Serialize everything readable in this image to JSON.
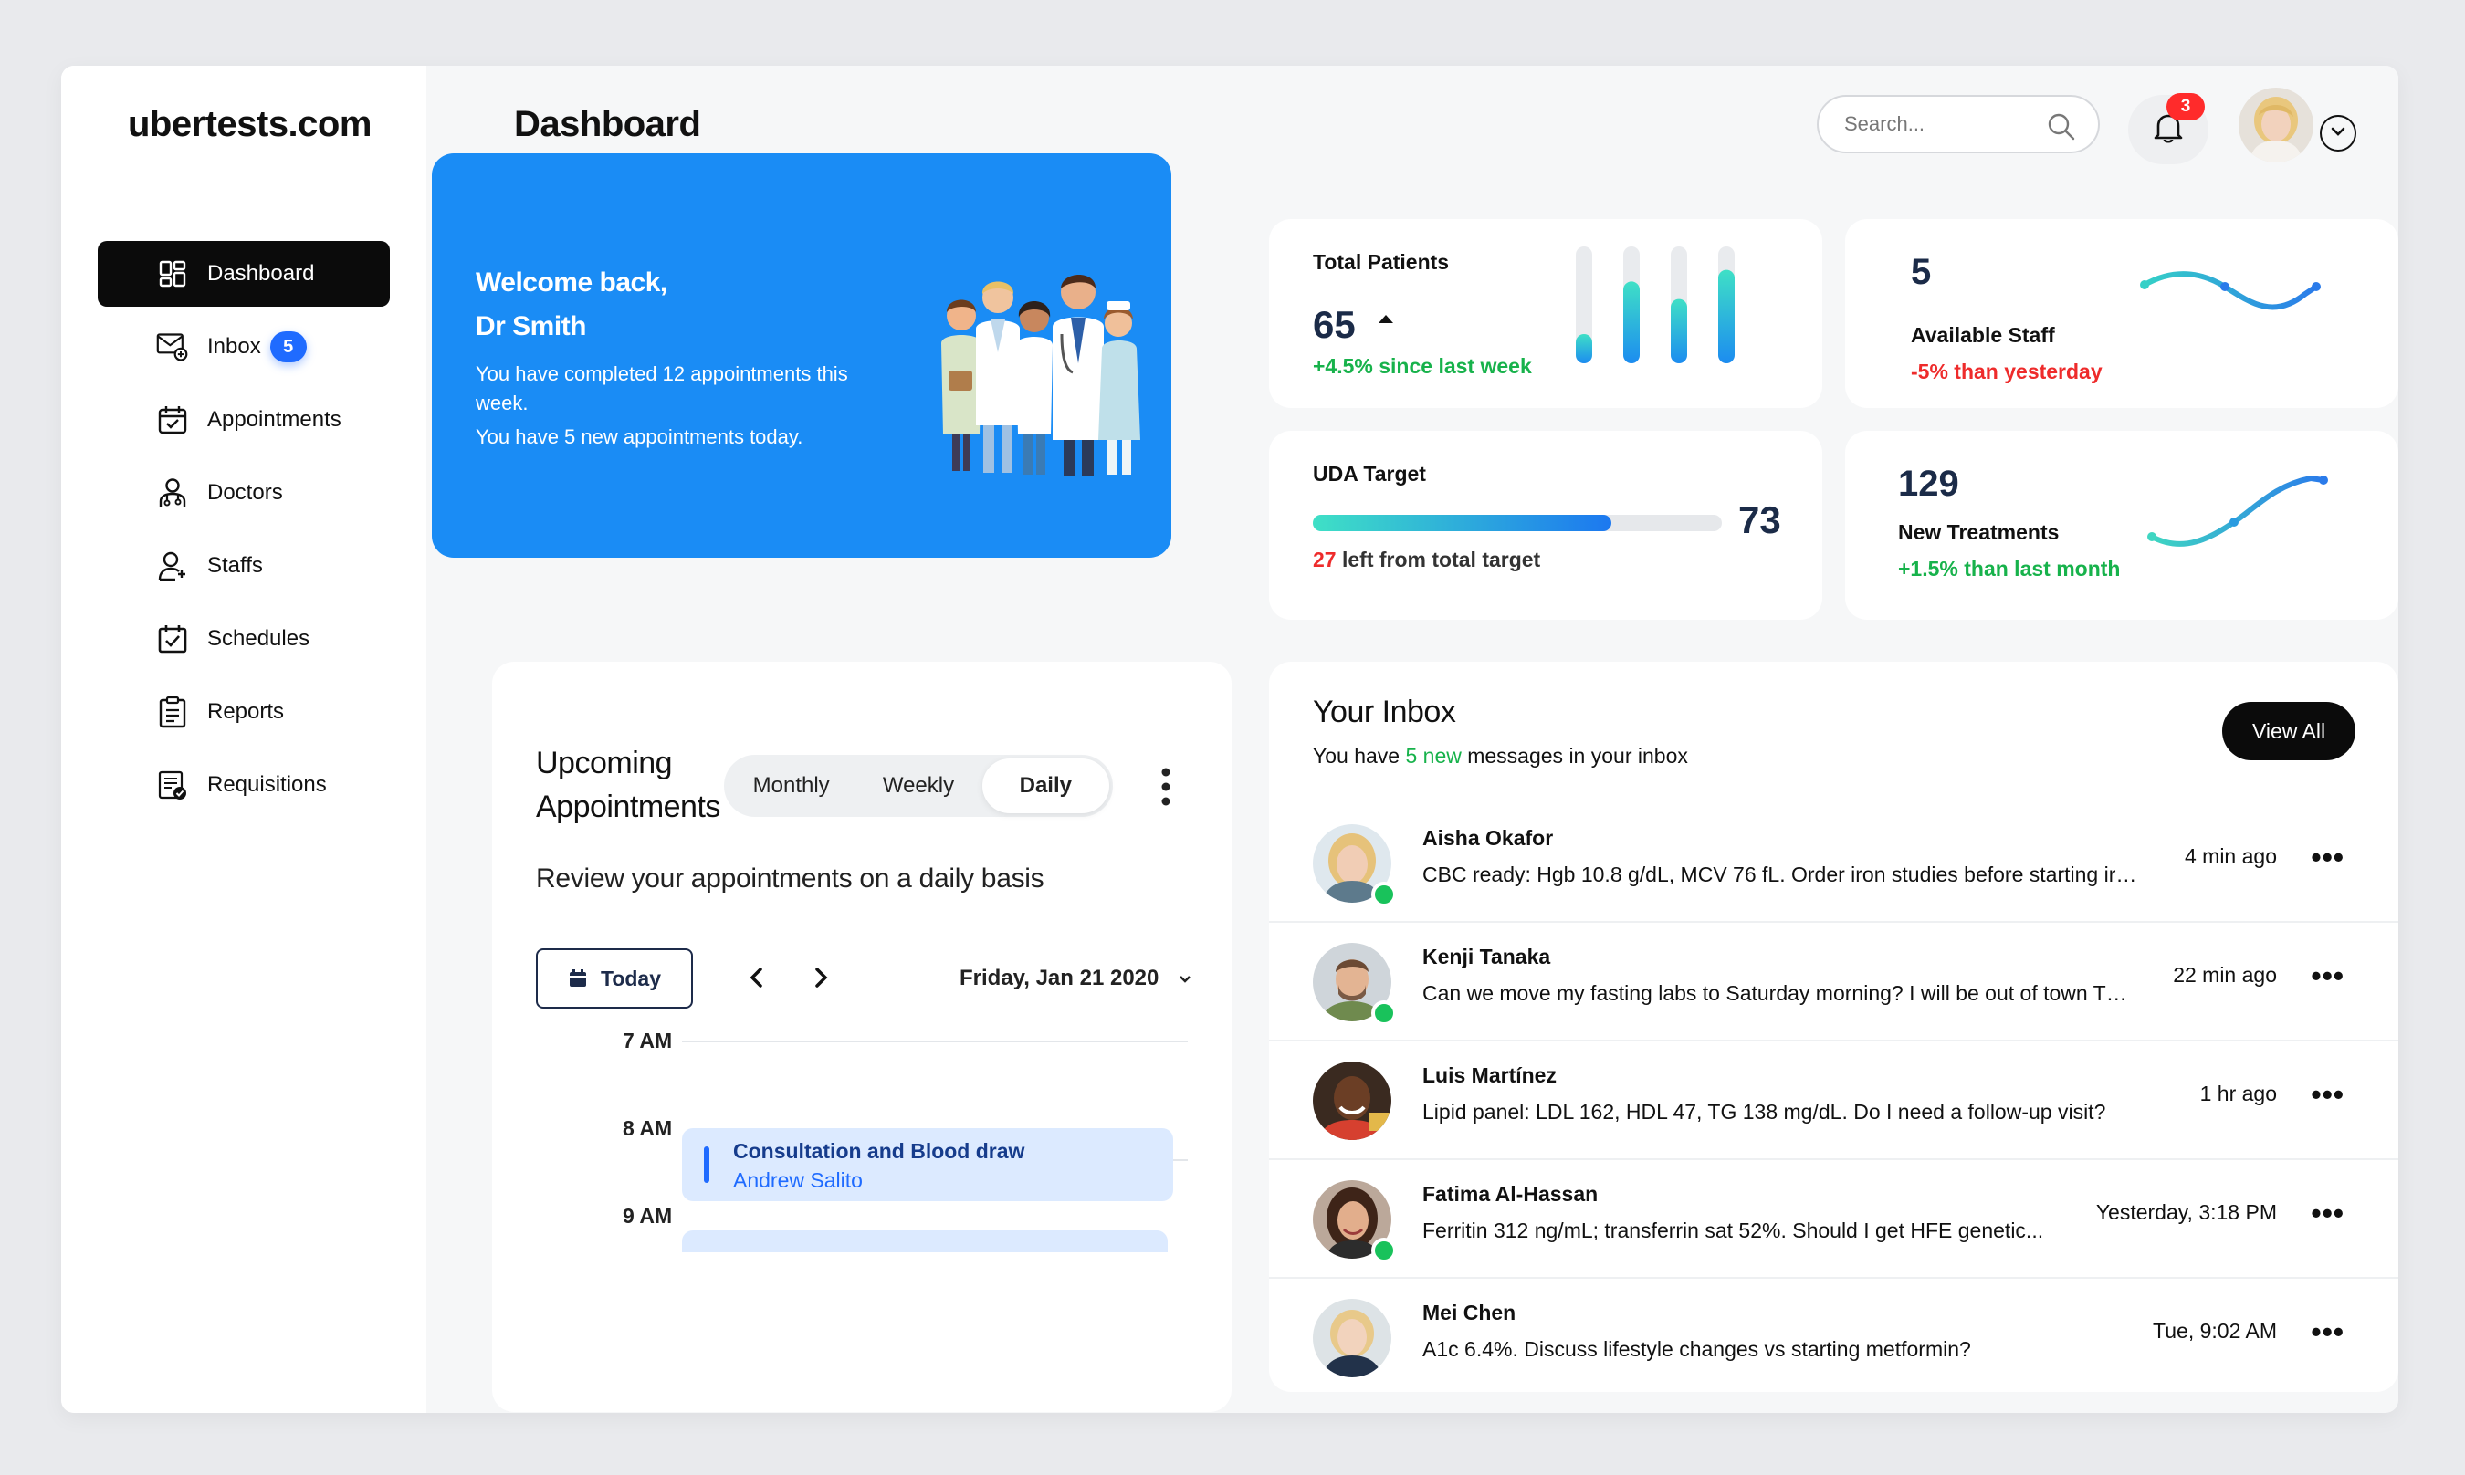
{
  "brand": "ubertests.com",
  "header": {
    "title": "Dashboard",
    "search_placeholder": "Search...",
    "notifications_count": "3"
  },
  "sidebar": {
    "items": [
      {
        "label": "Dashboard",
        "icon": "dashboard-icon",
        "active": true
      },
      {
        "label": "Inbox",
        "icon": "inbox-icon",
        "badge": "5"
      },
      {
        "label": "Appointments",
        "icon": "calendar-icon"
      },
      {
        "label": "Doctors",
        "icon": "doctor-icon"
      },
      {
        "label": "Staffs",
        "icon": "staff-icon"
      },
      {
        "label": "Schedules",
        "icon": "schedule-icon"
      },
      {
        "label": "Reports",
        "icon": "clipboard-icon"
      },
      {
        "label": "Requisitions",
        "icon": "requisition-icon"
      }
    ]
  },
  "welcome": {
    "line1": "Welcome back,",
    "line2": "Dr Smith",
    "text1": "You have completed 12 appointments this week.",
    "text2": "You have 5 new appointments today."
  },
  "stats": {
    "total_patients": {
      "label": "Total Patients",
      "value": "65",
      "change": "+4.5% since last week",
      "bars": [
        0.25,
        0.7,
        0.55,
        0.8
      ]
    },
    "available_staff": {
      "value": "5",
      "label": "Available Staff",
      "change": "-5% than yesterday"
    },
    "uda_target": {
      "label": "UDA Target",
      "value": "73",
      "left_num": "27",
      "left_text": " left from total target",
      "progress": 0.73
    },
    "new_treatments": {
      "value": "129",
      "label": "New Treatments",
      "change": "+1.5% than last month"
    }
  },
  "appointments": {
    "title_line1": "Upcoming",
    "title_line2": "Appointments",
    "tabs": [
      "Monthly",
      "Weekly",
      "Daily"
    ],
    "active_tab": "Daily",
    "subtitle": "Review your appointments on a daily basis",
    "today_label": "Today",
    "date": "Friday, Jan 21 2020",
    "times": [
      "7 AM",
      "8 AM",
      "9 AM"
    ],
    "event": {
      "title": "Consultation and Blood draw",
      "person": "Andrew Salito"
    }
  },
  "inbox": {
    "title": "Your Inbox",
    "sub_before": "You have ",
    "sub_new": "5 new",
    "sub_after": " messages in your inbox",
    "view_all": "View All",
    "messages": [
      {
        "name": "Aisha Okafor",
        "text": "CBC ready: Hgb 10.8 g/dL, MCV 76 fL. Order iron studies before starting iron?",
        "time": "4 min ago",
        "online": true
      },
      {
        "name": "Kenji Tanaka",
        "text": "Can we move my fasting labs to Saturday morning? I will be out of town Thu...",
        "time": "22 min ago",
        "online": true
      },
      {
        "name": "Luis Martínez",
        "text": "Lipid panel: LDL 162, HDL 47, TG 138 mg/dL. Do I need a follow-up visit?",
        "time": "1 hr ago",
        "online": false
      },
      {
        "name": "Fatima Al-Hassan",
        "text": "Ferritin 312 ng/mL; transferrin sat 52%. Should I get HFE genetic...",
        "time": "Yesterday, 3:18 PM",
        "online": true
      },
      {
        "name": "Mei Chen",
        "text": "A1c 6.4%. Discuss lifestyle changes vs starting metformin?",
        "time": "Tue, 9:02 AM",
        "online": false
      }
    ]
  }
}
